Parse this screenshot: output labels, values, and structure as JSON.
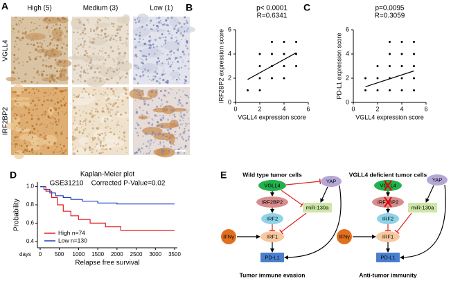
{
  "panel_A": {
    "label": "A",
    "columns": [
      "High (5)",
      "Medium (3)",
      "Low (1)"
    ],
    "rows": [
      "VGLL4",
      "IRF2BP2"
    ]
  },
  "chart_data": [
    {
      "type": "scatter",
      "panel": "B",
      "xlabel": "VGLL4 expression score",
      "ylabel": "IRF2BP2 expression score",
      "annotations": [
        "p< 0.0001",
        "R=0.6341"
      ],
      "xlim": [
        0,
        6
      ],
      "ylim": [
        0,
        6
      ],
      "xticks": [
        0,
        2,
        4,
        6
      ],
      "yticks": [
        0,
        2,
        4,
        6
      ],
      "series": [
        {
          "type": "scatter",
          "color": "#000000",
          "x": [
            1,
            2,
            2,
            2,
            2,
            3,
            3,
            3,
            3,
            4,
            4,
            4,
            4,
            5,
            5,
            5
          ],
          "values": [
            1,
            1,
            2,
            3,
            4,
            2,
            3,
            4,
            5,
            2,
            3,
            4,
            5,
            3,
            4,
            5
          ]
        },
        {
          "type": "line",
          "color": "#000000",
          "x": [
            1,
            5
          ],
          "values": [
            1.9,
            4.1
          ]
        }
      ]
    },
    {
      "type": "scatter",
      "panel": "C",
      "xlabel": "VGLL4 expression score",
      "ylabel": "PD-L1 expression score",
      "annotations": [
        "p=0.0095",
        "R=0.3059"
      ],
      "xlim": [
        0,
        6
      ],
      "ylim": [
        0,
        6
      ],
      "xticks": [
        0,
        2,
        4,
        6
      ],
      "yticks": [
        0,
        2,
        4,
        6
      ],
      "series": [
        {
          "type": "scatter",
          "color": "#000000",
          "x": [
            1,
            1,
            2,
            2,
            2,
            3,
            3,
            3,
            3,
            3,
            4,
            4,
            4,
            4,
            4,
            5,
            5,
            5,
            5,
            5
          ],
          "values": [
            1,
            2,
            1,
            2,
            3,
            1,
            2,
            3,
            4,
            5,
            1,
            2,
            3,
            4,
            5,
            1,
            2,
            3,
            4,
            5
          ]
        },
        {
          "type": "line",
          "color": "#000000",
          "x": [
            1,
            5
          ],
          "values": [
            1.3,
            2.6
          ]
        }
      ]
    },
    {
      "type": "line",
      "panel": "D",
      "title": "Kaplan-Meier plot",
      "subtitle": "GSE31210    Corrected P-Value=0.02",
      "xlabel": "Relapse free survival",
      "ylabel": "Probability",
      "x_units": "days",
      "xlim": [
        0,
        3500
      ],
      "ylim": [
        0.33,
        1.05
      ],
      "xticks": [
        0,
        500,
        1000,
        1500,
        2000,
        2500,
        3000,
        3500
      ],
      "yticks": [
        0.4,
        0.6,
        0.8,
        {
          "value": 1,
          "label": "1.0"
        }
      ],
      "legend": "lower left",
      "series": [
        {
          "name": "High n=74",
          "color": "#e41a1c",
          "x": [
            0,
            150,
            150,
            300,
            300,
            450,
            450,
            600,
            600,
            800,
            800,
            1000,
            1000,
            1300,
            1300,
            1700,
            1700,
            2100,
            2100,
            3500
          ],
          "values": [
            1,
            1,
            0.95,
            0.95,
            0.88,
            0.88,
            0.8,
            0.8,
            0.73,
            0.73,
            0.68,
            0.68,
            0.64,
            0.64,
            0.6,
            0.6,
            0.56,
            0.56,
            0.52,
            0.52
          ]
        },
        {
          "name": "Low n=130",
          "color": "#1f3fbf",
          "x": [
            0,
            100,
            100,
            250,
            250,
            400,
            400,
            600,
            600,
            800,
            800,
            1100,
            1100,
            1500,
            1500,
            2000,
            2000,
            3500
          ],
          "values": [
            1,
            1,
            0.97,
            0.97,
            0.93,
            0.93,
            0.9,
            0.9,
            0.88,
            0.88,
            0.86,
            0.86,
            0.84,
            0.84,
            0.82,
            0.82,
            0.81,
            0.81
          ]
        }
      ]
    }
  ],
  "panel_E": {
    "label": "E",
    "left": {
      "title": "Wild type tumor cells",
      "footer": "Tumor immune evasion",
      "nodes": [
        "VGLL4",
        "YAP",
        "IRF2BP2",
        "miR-130a",
        "IRF2",
        "IFNγ",
        "IRF1",
        "PD-L1"
      ]
    },
    "right": {
      "title": "VGLL4 deficient tumor cells",
      "footer": "Anti-tumor immunity",
      "nodes": [
        "VGLL4",
        "YAP",
        "IRF2BP2",
        "miR-130a",
        "IRF2",
        "IFNγ",
        "IRF1",
        "PD-L1"
      ]
    }
  }
}
